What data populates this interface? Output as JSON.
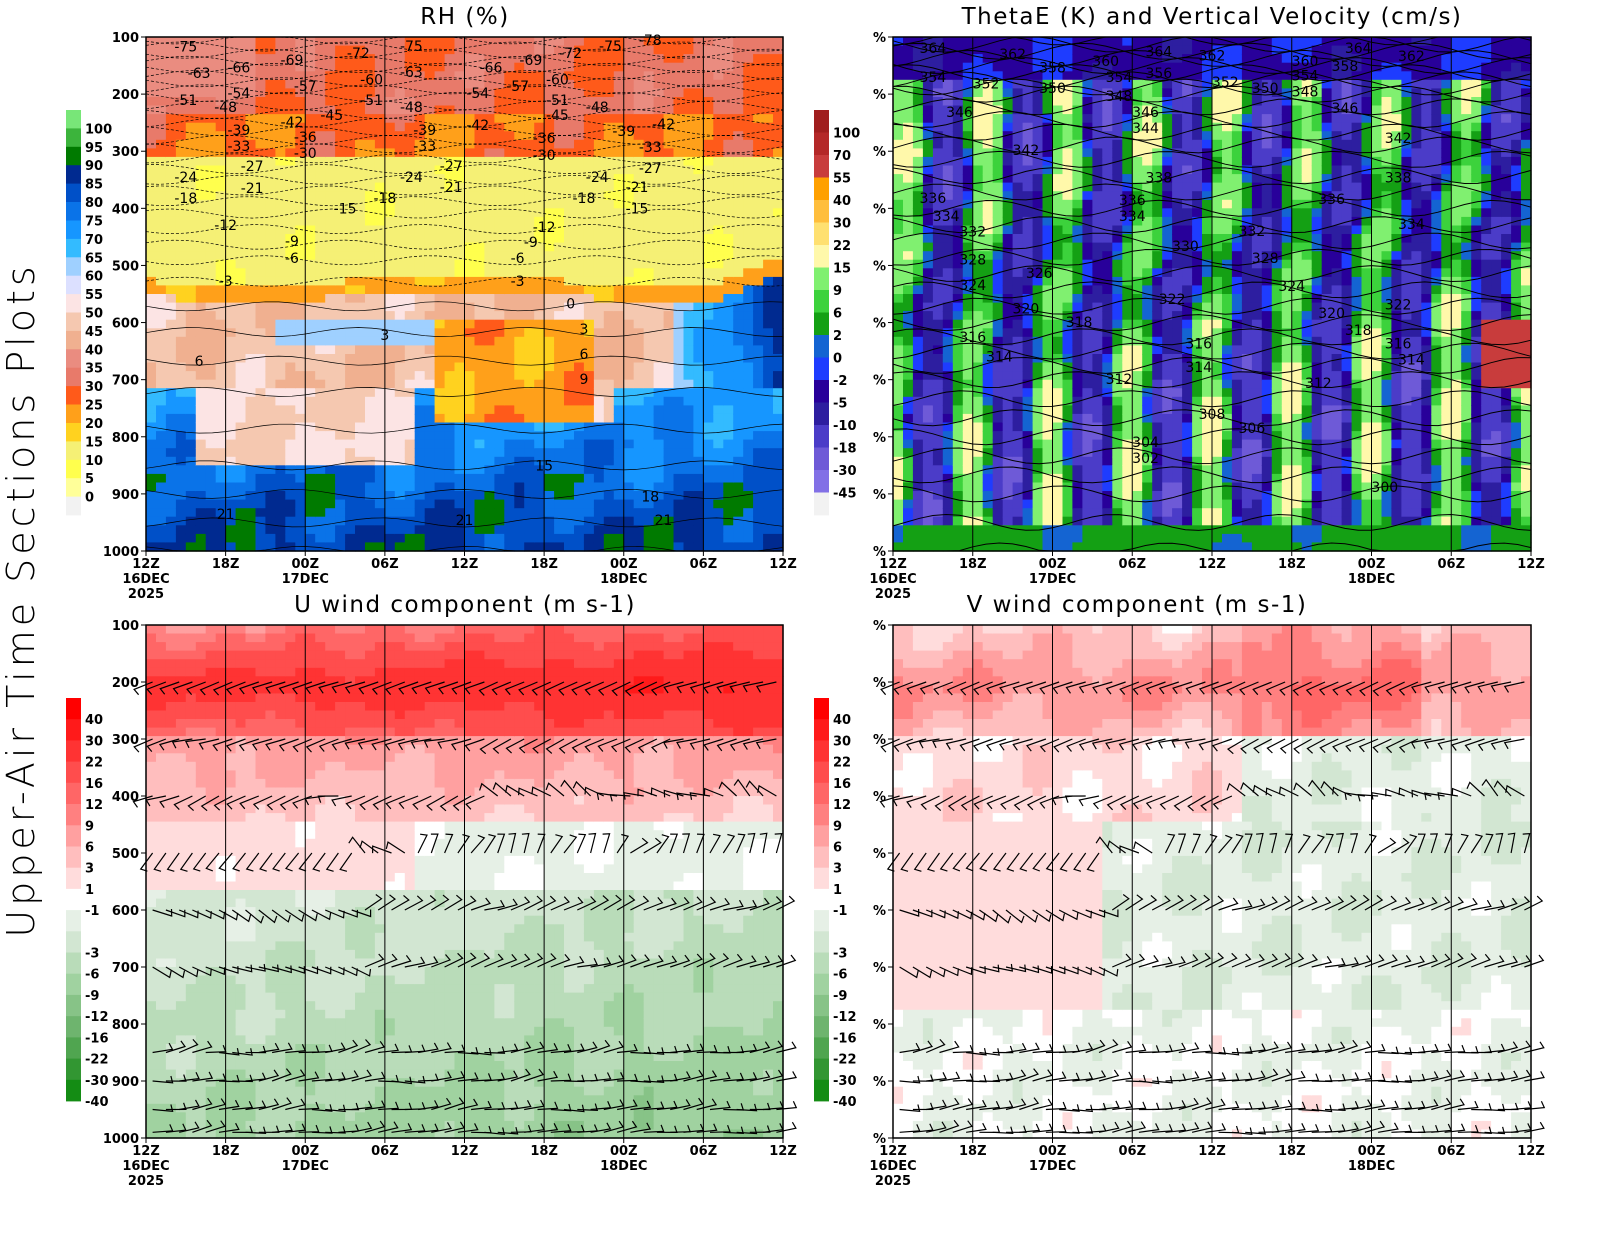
{
  "side_label": "Upper-Air Time Sections Plots",
  "chart_data": [
    {
      "type": "heatmap",
      "title": "RH (%)",
      "x_ticks": [
        "12Z",
        "18Z",
        "00Z",
        "06Z",
        "12Z",
        "18Z",
        "00Z",
        "06Z",
        "12Z"
      ],
      "x_date_labels": [
        "16DEC",
        "",
        "17DEC",
        "",
        "",
        "",
        "18DEC",
        "",
        ""
      ],
      "x_year_labels": [
        "2025",
        "",
        "",
        "",
        "",
        "",
        "",
        "",
        ""
      ],
      "y_ticks": [
        100,
        200,
        300,
        400,
        500,
        600,
        700,
        800,
        900,
        1000
      ],
      "y_tick_labels": [
        "100",
        "200",
        "300",
        "400",
        "500",
        "600",
        "700",
        "800",
        "900",
        "1000"
      ],
      "y_reversed": true,
      "colorbar": {
        "labels": [
          "100",
          "95",
          "90",
          "85",
          "80",
          "75",
          "70",
          "65",
          "60",
          "55",
          "50",
          "45",
          "40",
          "35",
          "30",
          "25",
          "20",
          "15",
          "10",
          "5",
          "0"
        ],
        "colors": [
          "#78e678",
          "#3cb43c",
          "#007a00",
          "#002a90",
          "#0050c8",
          "#0a73e8",
          "#1696ff",
          "#33bbff",
          "#9fd0ff",
          "#dce0ff",
          "#fce4e4",
          "#f5c8b0",
          "#f0b090",
          "#ea8c80",
          "#e87a6a",
          "#ff5a1a",
          "#ffa01a",
          "#ffd21f",
          "#f5f075",
          "#ffff4d",
          "#ffff99",
          "#f2f2f2"
        ]
      },
      "contour_style": "isotherms",
      "contour_labels": [
        [
          -75,
          117,
          "16/15"
        ],
        [
          -63,
          163,
          "16/16"
        ],
        [
          -66,
          153,
          "16/19"
        ],
        [
          -69,
          140,
          "16/23"
        ],
        [
          -72,
          128,
          "17/04"
        ],
        [
          -75,
          116,
          "17/08"
        ],
        [
          -63,
          161,
          "17/08"
        ],
        [
          -60,
          174,
          "17/05"
        ],
        [
          -57,
          186,
          "17/00"
        ],
        [
          -51,
          210,
          "16/15"
        ],
        [
          -54,
          198,
          "16/19"
        ],
        [
          -48,
          223,
          "16/18"
        ],
        [
          -51,
          210,
          "17/05"
        ],
        [
          -48,
          223,
          "17/08"
        ],
        [
          -45,
          237,
          "17/02"
        ],
        [
          -42,
          249,
          "16/23"
        ],
        [
          -39,
          263,
          "16/19"
        ],
        [
          -36,
          275,
          "17/00"
        ],
        [
          -33,
          291,
          "16/19"
        ],
        [
          -30,
          303,
          "17/00"
        ],
        [
          -39,
          263,
          "17/09"
        ],
        [
          -33,
          291,
          "17/09"
        ],
        [
          -27,
          326,
          "16/20"
        ],
        [
          -24,
          345,
          "16/15"
        ],
        [
          -21,
          364,
          "16/20"
        ],
        [
          -18,
          382,
          "16/15"
        ],
        [
          -12,
          429,
          "16/18"
        ],
        [
          -15,
          400,
          "17/03"
        ],
        [
          -18,
          382,
          "17/06"
        ],
        [
          -24,
          345,
          "17/08"
        ],
        [
          -21,
          363,
          "17/11"
        ],
        [
          -27,
          326,
          "17/11"
        ],
        [
          -9,
          457,
          "16/23"
        ],
        [
          -6,
          487,
          "16/23"
        ],
        [
          -3,
          527,
          "16/18"
        ],
        [
          3,
          622,
          "17/06"
        ],
        [
          6,
          667,
          "16/16"
        ],
        [
          0,
          567,
          "17/20"
        ],
        [
          3,
          611,
          "17/21"
        ],
        [
          6,
          655,
          "17/21"
        ],
        [
          9,
          699,
          "17/21"
        ],
        [
          15,
          850,
          "17/18"
        ],
        [
          18,
          905,
          "18/02"
        ],
        [
          21,
          935,
          "16/18"
        ],
        [
          21,
          946,
          "17/12"
        ],
        [
          21,
          946,
          "18/03"
        ],
        [
          -66,
          153,
          "17/14"
        ],
        [
          -69,
          140,
          "17/17"
        ],
        [
          -72,
          128,
          "17/20"
        ],
        [
          -75,
          116,
          "17/23"
        ],
        [
          -78,
          105,
          "18/02"
        ],
        [
          -54,
          198,
          "17/13"
        ],
        [
          -57,
          186,
          "17/16"
        ],
        [
          -60,
          174,
          "17/19"
        ],
        [
          -51,
          210,
          "17/19"
        ],
        [
          -45,
          237,
          "17/19"
        ],
        [
          -48,
          223,
          "17/22"
        ],
        [
          -42,
          254,
          "17/13"
        ],
        [
          -36,
          277,
          "17/18"
        ],
        [
          -30,
          307,
          "17/18"
        ],
        [
          -39,
          265,
          "18/00"
        ],
        [
          -42,
          252,
          "18/03"
        ],
        [
          -33,
          293,
          "18/02"
        ],
        [
          -27,
          329,
          "18/02"
        ],
        [
          -24,
          345,
          "17/22"
        ],
        [
          -21,
          363,
          "18/01"
        ],
        [
          -18,
          382,
          "17/21"
        ],
        [
          -15,
          400,
          "18/01"
        ],
        [
          -12,
          433,
          "17/18"
        ],
        [
          -9,
          459,
          "17/17"
        ],
        [
          -6,
          487,
          "17/16"
        ],
        [
          -3,
          527,
          "17/16"
        ]
      ]
    },
    {
      "type": "heatmap",
      "title": "ThetaE (K) and Vertical Velocity (cm/s)",
      "x_ticks": [
        "12Z",
        "18Z",
        "00Z",
        "06Z",
        "12Z",
        "18Z",
        "00Z",
        "06Z",
        "12Z"
      ],
      "x_date_labels": [
        "16DEC",
        "",
        "17DEC",
        "",
        "",
        "",
        "18DEC",
        "",
        ""
      ],
      "x_year_labels": [
        "2025",
        "",
        "",
        "",
        "",
        "",
        "",
        "",
        ""
      ],
      "y_ticks": [
        100,
        200,
        300,
        400,
        500,
        600,
        700,
        800,
        900,
        1000
      ],
      "y_tick_labels": [
        "%",
        "%",
        "%",
        "%",
        "%",
        "%",
        "%",
        "%",
        "%",
        "%"
      ],
      "y_reversed": true,
      "colorbar": {
        "labels": [
          "100",
          "70",
          "55",
          "40",
          "30",
          "22",
          "15",
          "9",
          "6",
          "2",
          "0",
          "-2",
          "-5",
          "-10",
          "-18",
          "-30",
          "-45"
        ],
        "colors": [
          "#a01e1e",
          "#b42828",
          "#c83c3c",
          "#ffa000",
          "#ffbe3c",
          "#ffe070",
          "#fff8aa",
          "#80f070",
          "#3cd23c",
          "#14a014",
          "#1464d2",
          "#1e3cff",
          "#28009a",
          "#2d1ea0",
          "#4b3cc8",
          "#6e5ad7",
          "#8270e6",
          "#f2f2f2"
        ]
      },
      "contour_style": "thetae",
      "contour_labels": [
        [
          364,
          119,
          "16/15"
        ],
        [
          362,
          130,
          "16/21"
        ],
        [
          358,
          153,
          "17/00"
        ],
        [
          360,
          142,
          "17/04"
        ],
        [
          364,
          125,
          "17/08"
        ],
        [
          362,
          132,
          "17/12"
        ],
        [
          360,
          142,
          "17/19"
        ],
        [
          358,
          151,
          "17/22"
        ],
        [
          364,
          119,
          "17/23"
        ],
        [
          362,
          133,
          "18/03"
        ],
        [
          354,
          170,
          "16/15"
        ],
        [
          352,
          181,
          "16/19"
        ],
        [
          350,
          189,
          "17/00"
        ],
        [
          354,
          170,
          "17/05"
        ],
        [
          356,
          163,
          "17/08"
        ],
        [
          348,
          203,
          "17/05"
        ],
        [
          352,
          179,
          "17/13"
        ],
        [
          350,
          189,
          "17/16"
        ],
        [
          354,
          167,
          "17/19"
        ],
        [
          348,
          195,
          "17/19"
        ],
        [
          346,
          231,
          "16/17"
        ],
        [
          346,
          231,
          "17/07"
        ],
        [
          344,
          259,
          "17/07"
        ],
        [
          346,
          224,
          "17/22"
        ],
        [
          342,
          298,
          "16/22"
        ],
        [
          342,
          277,
          "18/02"
        ],
        [
          338,
          346,
          "17/08"
        ],
        [
          338,
          346,
          "18/02"
        ],
        [
          336,
          382,
          "16/15"
        ],
        [
          334,
          413,
          "16/16"
        ],
        [
          336,
          385,
          "17/06"
        ],
        [
          334,
          413,
          "17/06"
        ],
        [
          336,
          384,
          "17/21"
        ],
        [
          334,
          427,
          "18/03"
        ],
        [
          332,
          441,
          "16/18"
        ],
        [
          330,
          466,
          "17/10"
        ],
        [
          332,
          440,
          "17/15"
        ],
        [
          328,
          490,
          "16/18"
        ],
        [
          326,
          513,
          "16/23"
        ],
        [
          328,
          487,
          "17/16"
        ],
        [
          324,
          534,
          "16/18"
        ],
        [
          324,
          536,
          "17/18"
        ],
        [
          322,
          559,
          "17/09"
        ],
        [
          322,
          568,
          "18/02"
        ],
        [
          320,
          575,
          "16/22"
        ],
        [
          320,
          583,
          "17/21"
        ],
        [
          318,
          599,
          "17/02"
        ],
        [
          318,
          613,
          "17/23"
        ],
        [
          316,
          625,
          "16/18"
        ],
        [
          316,
          637,
          "17/11"
        ],
        [
          316,
          637,
          "18/02"
        ],
        [
          314,
          659,
          "16/20"
        ],
        [
          314,
          678,
          "17/11"
        ],
        [
          314,
          665,
          "18/03"
        ],
        [
          312,
          699,
          "17/05"
        ],
        [
          312,
          706,
          "17/20"
        ],
        [
          308,
          760,
          "17/12"
        ],
        [
          306,
          785,
          "17/15"
        ],
        [
          304,
          809,
          "17/07"
        ],
        [
          302,
          837,
          "17/07"
        ],
        [
          300,
          888,
          "18/01"
        ]
      ]
    },
    {
      "type": "heatmap",
      "title": "U wind component (m s-1)",
      "x_ticks": [
        "12Z",
        "18Z",
        "00Z",
        "06Z",
        "12Z",
        "18Z",
        "00Z",
        "06Z",
        "12Z"
      ],
      "x_date_labels": [
        "16DEC",
        "",
        "17DEC",
        "",
        "",
        "",
        "18DEC",
        "",
        ""
      ],
      "x_year_labels": [
        "2025",
        "",
        "",
        "",
        "",
        "",
        "",
        "",
        ""
      ],
      "y_ticks": [
        100,
        200,
        300,
        400,
        500,
        600,
        700,
        800,
        900,
        1000
      ],
      "y_tick_labels": [
        "100",
        "200",
        "300",
        "400",
        "500",
        "600",
        "700",
        "800",
        "900",
        "1000"
      ],
      "y_reversed": true,
      "colorbar": {
        "labels": [
          "40",
          "30",
          "22",
          "16",
          "12",
          "9",
          "6",
          "3",
          "1",
          "-1",
          "-3",
          "-6",
          "-9",
          "-12",
          "-16",
          "-22",
          "-30",
          "-40"
        ],
        "colors": [
          "#ff0000",
          "#ff1a1a",
          "#ff3333",
          "#ff4d4d",
          "#ff6666",
          "#ff8080",
          "#ffa0a0",
          "#ffbebe",
          "#ffdcdc",
          "#ffffff",
          "#e6f0e6",
          "#d2e6d2",
          "#b9dcb9",
          "#a0d2a0",
          "#87c387",
          "#6eb46e",
          "#50a550",
          "#329632",
          "#148c14"
        ]
      },
      "wind_barb_levels": [
        200,
        300,
        400,
        500,
        600,
        700,
        850,
        900,
        950,
        1000
      ]
    },
    {
      "type": "heatmap",
      "title": "V wind component (m s-1)",
      "x_ticks": [
        "12Z",
        "18Z",
        "00Z",
        "06Z",
        "12Z",
        "18Z",
        "00Z",
        "06Z",
        "12Z"
      ],
      "x_date_labels": [
        "16DEC",
        "",
        "17DEC",
        "",
        "",
        "",
        "18DEC",
        "",
        ""
      ],
      "x_year_labels": [
        "2025",
        "",
        "",
        "",
        "",
        "",
        "",
        "",
        ""
      ],
      "y_ticks": [
        100,
        200,
        300,
        400,
        500,
        600,
        700,
        800,
        900,
        1000
      ],
      "y_tick_labels": [
        "%",
        "%",
        "%",
        "%",
        "%",
        "%",
        "%",
        "%",
        "%",
        "%"
      ],
      "y_reversed": true,
      "colorbar": {
        "labels": [
          "40",
          "30",
          "22",
          "16",
          "12",
          "9",
          "6",
          "3",
          "1",
          "-1",
          "-3",
          "-6",
          "-9",
          "-12",
          "-16",
          "-22",
          "-30",
          "-40"
        ],
        "colors": [
          "#ff0000",
          "#ff1a1a",
          "#ff3333",
          "#ff4d4d",
          "#ff6666",
          "#ff8080",
          "#ffa0a0",
          "#ffbebe",
          "#ffdcdc",
          "#ffffff",
          "#e6f0e6",
          "#d2e6d2",
          "#b9dcb9",
          "#a0d2a0",
          "#87c387",
          "#6eb46e",
          "#50a550",
          "#329632",
          "#148c14"
        ]
      },
      "wind_barb_levels": [
        200,
        300,
        400,
        500,
        600,
        700,
        850,
        900,
        950,
        1000
      ]
    }
  ]
}
